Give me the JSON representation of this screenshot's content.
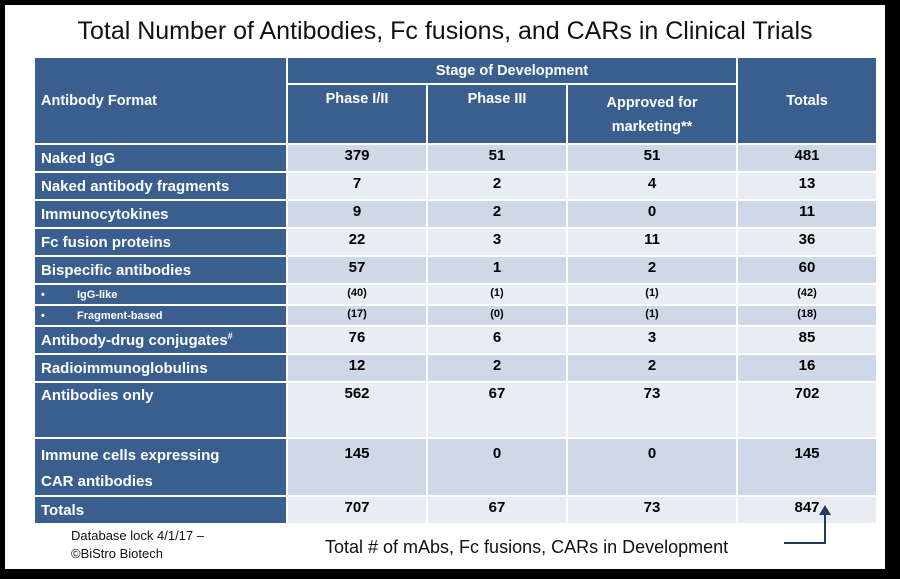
{
  "title": "Total Number of Antibodies, Fc fusions, and CARs in Clinical Trials",
  "header": {
    "format": "Antibody Format",
    "stage": "Stage of Development",
    "phase12": "Phase I/II",
    "phase3": "Phase III",
    "approved": "Approved for marketing**",
    "totals": "Totals"
  },
  "rows": [
    {
      "label": "Naked IgG",
      "sup": "",
      "p12": "379",
      "p3": "51",
      "app": "51",
      "tot": "481"
    },
    {
      "label": "Naked antibody fragments",
      "sup": "",
      "p12": "7",
      "p3": "2",
      "app": "4",
      "tot": "13"
    },
    {
      "label": "Immunocytokines",
      "sup": "",
      "p12": "9",
      "p3": "2",
      "app": "0",
      "tot": "11"
    },
    {
      "label": "Fc fusion proteins",
      "sup": "",
      "p12": "22",
      "p3": "3",
      "app": "11",
      "tot": "36"
    },
    {
      "label": "Bispecific antibodies",
      "sup": "",
      "p12": "57",
      "p3": "1",
      "app": "2",
      "tot": "60"
    },
    {
      "label": "IgG-like",
      "bullet": "•",
      "p12": "(40)",
      "p3": "(1)",
      "app": "(1)",
      "tot": "(42)"
    },
    {
      "label": "Fragment-based",
      "bullet": "•",
      "p12": "(17)",
      "p3": "(0)",
      "app": "(1)",
      "tot": "(18)"
    },
    {
      "label": "Antibody-drug conjugates",
      "sup": "#",
      "p12": "76",
      "p3": "6",
      "app": "3",
      "tot": "85"
    },
    {
      "label": "Radioimmunoglobulins",
      "sup": "",
      "p12": "12",
      "p3": "2",
      "app": "2",
      "tot": "16"
    },
    {
      "label": "Antibodies only",
      "sup": "",
      "p12": "562",
      "p3": "67",
      "app": "73",
      "tot": "702"
    },
    {
      "label": "Immune cells expressing CAR antibodies",
      "sup": "",
      "p12": "145",
      "p3": "0",
      "app": "0",
      "tot": "145"
    },
    {
      "label": "Totals",
      "sup": "",
      "p12": "707",
      "p3": "67",
      "app": "73",
      "tot": "847"
    }
  ],
  "footer": {
    "lock": "Database lock 4/1/17 –",
    "copyright": "©BiStro Biotech",
    "total_note": "Total # of mAbs, Fc fusions, CARs in Development"
  }
}
